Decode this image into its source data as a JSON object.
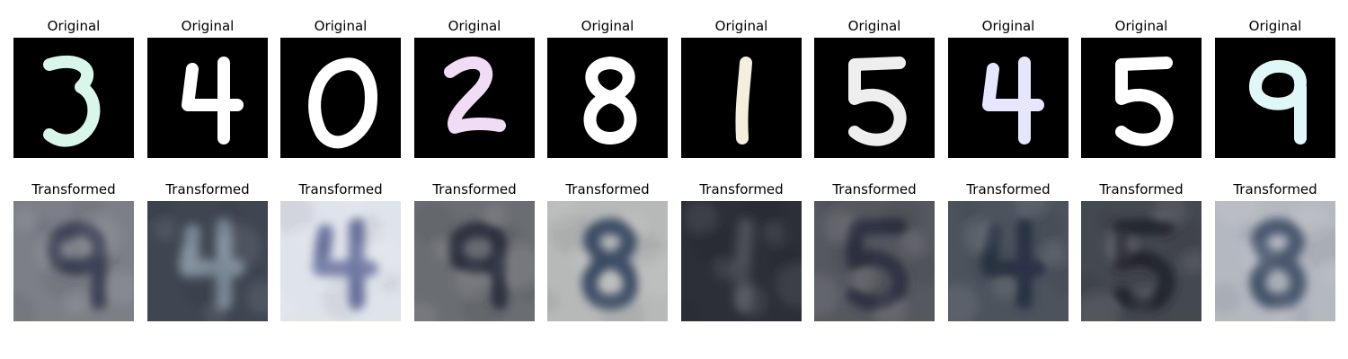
{
  "rows": [
    {
      "row": "original",
      "panels": [
        {
          "title": "Original",
          "digit": "3",
          "color": "#d8f7ea"
        },
        {
          "title": "Original",
          "digit": "4",
          "color": "#ffffff"
        },
        {
          "title": "Original",
          "digit": "0",
          "color": "#ffffff"
        },
        {
          "title": "Original",
          "digit": "2",
          "color": "#f1dcf6"
        },
        {
          "title": "Original",
          "digit": "8",
          "color": "#ffffff"
        },
        {
          "title": "Original",
          "digit": "1",
          "color": "#f4eedc"
        },
        {
          "title": "Original",
          "digit": "5",
          "color": "#eeeeee"
        },
        {
          "title": "Original",
          "digit": "4",
          "color": "#e6e6ff"
        },
        {
          "title": "Original",
          "digit": "5",
          "color": "#ffffff"
        },
        {
          "title": "Original",
          "digit": "9",
          "color": "#dff7f7"
        }
      ]
    },
    {
      "row": "transformed",
      "panels": [
        {
          "title": "Transformed",
          "digit": "9",
          "bg": "#7c7f86",
          "fg": "#3c4256"
        },
        {
          "title": "Transformed",
          "digit": "4",
          "bg": "#3f4652",
          "fg": "#7b8a98"
        },
        {
          "title": "Transformed",
          "digit": "4",
          "bg": "#dfe3ea",
          "fg": "#6f78a3"
        },
        {
          "title": "Transformed",
          "digit": "9",
          "bg": "#6a6d72",
          "fg": "#2d3241"
        },
        {
          "title": "Transformed",
          "digit": "8",
          "bg": "#b7b9b9",
          "fg": "#3d4d66"
        },
        {
          "title": "Transformed",
          "digit": "1",
          "bg": "#2c2f37",
          "fg": "#4b4f55"
        },
        {
          "title": "Transformed",
          "digit": "5",
          "bg": "#55585e",
          "fg": "#2e3142"
        },
        {
          "title": "Transformed",
          "digit": "4",
          "bg": "#4d535d",
          "fg": "#2a3346"
        },
        {
          "title": "Transformed",
          "digit": "5",
          "bg": "#44484f",
          "fg": "#23262f"
        },
        {
          "title": "Transformed",
          "digit": "8",
          "bg": "#b4b8bf",
          "fg": "#4a5870"
        }
      ]
    }
  ]
}
